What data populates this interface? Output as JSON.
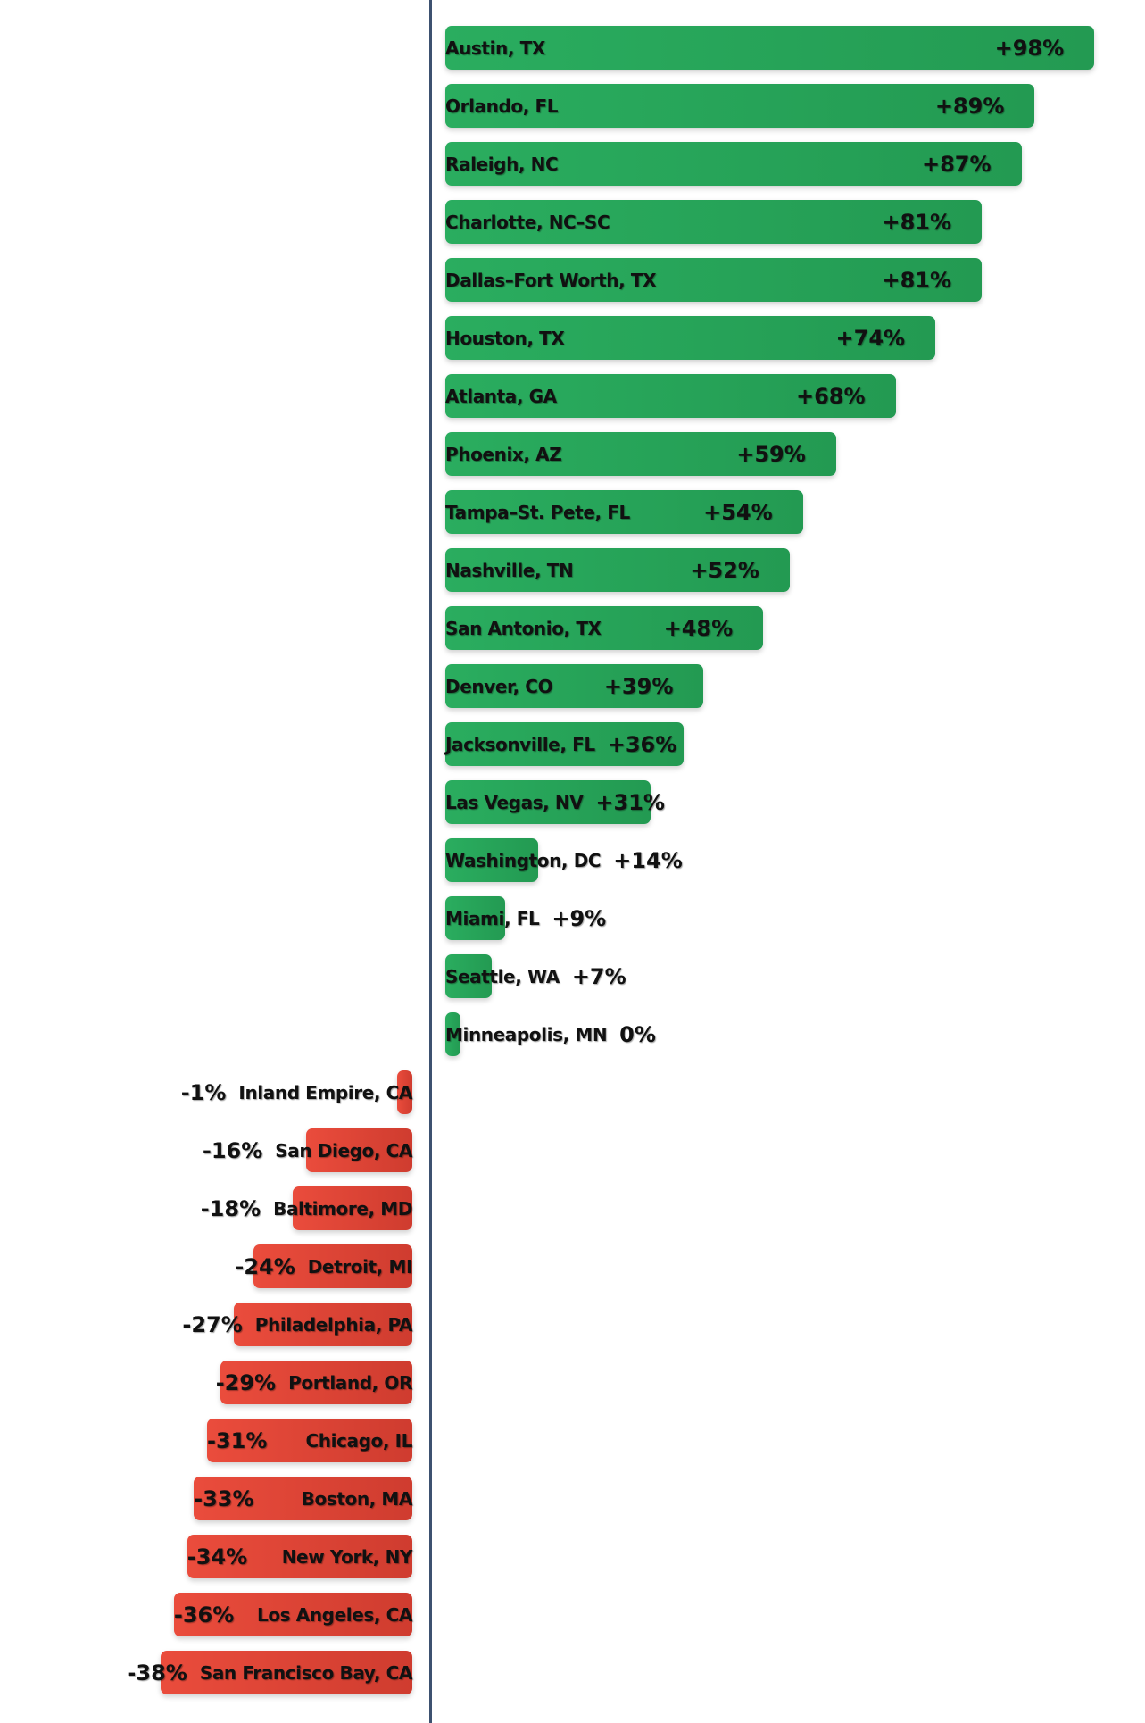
{
  "chart_data": {
    "type": "bar",
    "orientation": "horizontal",
    "title": "",
    "xlabel": "",
    "ylabel": "",
    "colors": {
      "positive": "#27a85a",
      "negative": "#e74c3c",
      "axis": "#3d5170"
    },
    "grid": false,
    "categories": [
      "Austin, TX",
      "Orlando, FL",
      "Raleigh, NC",
      "Charlotte, NC–SC",
      "Dallas–Fort Worth, TX",
      "Houston, TX",
      "Atlanta, GA",
      "Phoenix, AZ",
      "Tampa–St. Pete, FL",
      "Nashville, TN",
      "San Antonio, TX",
      "Denver, CO",
      "Jacksonville, FL",
      "Las Vegas, NV",
      "Washington, DC",
      "Miami, FL",
      "Seattle, WA",
      "Minneapolis, MN",
      "Inland Empire, CA",
      "San Diego, CA",
      "Baltimore, MD",
      "Detroit, MI",
      "Philadelphia, PA",
      "Portland, OR",
      "Chicago, IL",
      "Boston, MA",
      "New York, NY",
      "Los Angeles, CA",
      "San Francisco Bay, CA"
    ],
    "values": [
      98,
      89,
      87,
      81,
      81,
      74,
      68,
      59,
      54,
      52,
      48,
      39,
      36,
      31,
      14,
      9,
      7,
      0,
      -1,
      -16,
      -18,
      -24,
      -27,
      -29,
      -31,
      -33,
      -34,
      -36,
      -38
    ],
    "labels": [
      "+98%",
      "+89%",
      "+87%",
      "+81%",
      "+81%",
      "+74%",
      "+68%",
      "+59%",
      "+54%",
      "+52%",
      "+48%",
      "+39%",
      "+36%",
      "+31%",
      "+14%",
      "+9%",
      "+7%",
      "0%",
      "-1%",
      "-16%",
      "-18%",
      "-24%",
      "-27%",
      "-29%",
      "-31%",
      "-33%",
      "-34%",
      "-36%",
      "-38%"
    ]
  }
}
